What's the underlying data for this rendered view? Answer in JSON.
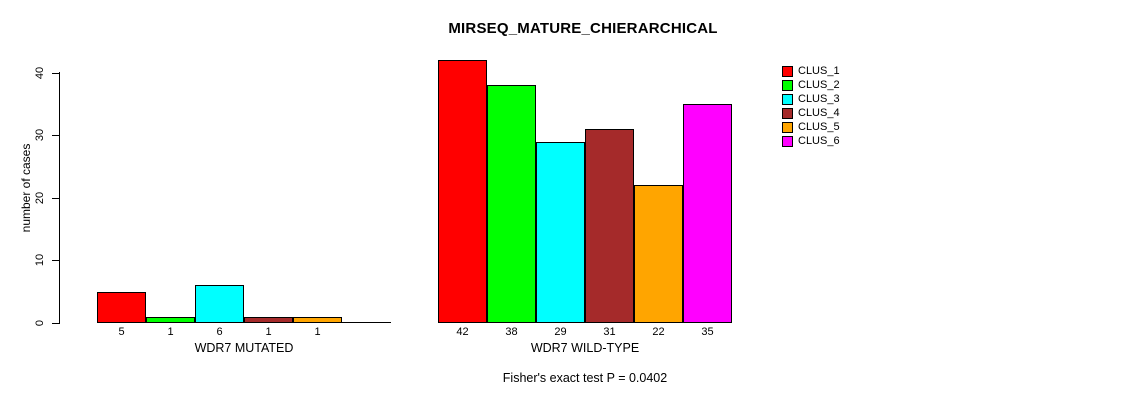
{
  "title": "MIRSEQ_MATURE_CHIERARCHICAL",
  "footnote": "Fisher's exact test P = 0.0402",
  "y_axis": {
    "label": "number of cases",
    "ticks": [
      0,
      10,
      20,
      30,
      40
    ],
    "range": [
      0,
      40
    ]
  },
  "legend": {
    "position": "right",
    "entries": [
      {
        "label": "CLUS_1",
        "color": "#FF0000"
      },
      {
        "label": "CLUS_2",
        "color": "#00FF00"
      },
      {
        "label": "CLUS_3",
        "color": "#00FFFF"
      },
      {
        "label": "CLUS_4",
        "color": "#A52A2A"
      },
      {
        "label": "CLUS_5",
        "color": "#FFA500"
      },
      {
        "label": "CLUS_6",
        "color": "#FF00FF"
      }
    ]
  },
  "chart_data": {
    "type": "bar",
    "title": "MIRSEQ_MATURE_CHIERARCHICAL",
    "ylabel": "number of cases",
    "ylim": [
      0,
      40
    ],
    "grid": false,
    "legend_position": "right",
    "series": [
      "CLUS_1",
      "CLUS_2",
      "CLUS_3",
      "CLUS_4",
      "CLUS_5",
      "CLUS_6"
    ],
    "colors": [
      "#FF0000",
      "#00FF00",
      "#00FFFF",
      "#A52A2A",
      "#FFA500",
      "#FF00FF"
    ],
    "groups": [
      {
        "label": "WDR7 MUTATED",
        "values": [
          5,
          1,
          6,
          1,
          1,
          0
        ],
        "bar_labels": [
          "5",
          "1",
          "6",
          "1",
          "1",
          ""
        ]
      },
      {
        "label": "WDR7 WILD-TYPE",
        "values": [
          42,
          38,
          29,
          31,
          22,
          35
        ],
        "bar_labels": [
          "42",
          "38",
          "29",
          "31",
          "22",
          "35"
        ]
      }
    ],
    "annotation": "Fisher's exact test P = 0.0402"
  }
}
